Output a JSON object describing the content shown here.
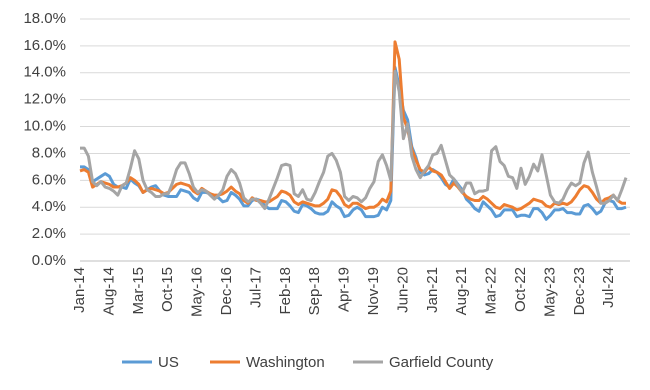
{
  "chart_data": {
    "type": "line",
    "categories": [
      "Jan-14",
      null,
      null,
      null,
      null,
      null,
      null,
      "Aug-14",
      null,
      null,
      null,
      null,
      null,
      null,
      "Mar-15",
      null,
      null,
      null,
      null,
      null,
      null,
      "Oct-15",
      null,
      null,
      null,
      null,
      null,
      null,
      "May-16",
      null,
      null,
      null,
      null,
      null,
      null,
      "Dec-16",
      null,
      null,
      null,
      null,
      null,
      null,
      "Jul-17",
      null,
      null,
      null,
      null,
      null,
      null,
      "Feb-18",
      null,
      null,
      null,
      null,
      null,
      null,
      "Sep-18",
      null,
      null,
      null,
      null,
      null,
      null,
      "Apr-19",
      null,
      null,
      null,
      null,
      null,
      null,
      "Nov-19",
      null,
      null,
      null,
      null,
      null,
      null,
      "Jun-20",
      null,
      null,
      null,
      null,
      null,
      null,
      "Jan-21",
      null,
      null,
      null,
      null,
      null,
      null,
      "Aug-21",
      null,
      null,
      null,
      null,
      null,
      null,
      "Mar-22",
      null,
      null,
      null,
      null,
      null,
      null,
      "Oct-22",
      null,
      null,
      null,
      null,
      null,
      null,
      "May-23",
      null,
      null,
      null,
      null,
      null,
      null,
      "Dec-23",
      null,
      null,
      null,
      null,
      null,
      null,
      "Jul-24",
      null,
      null,
      null,
      null
    ],
    "series": [
      {
        "name": "US",
        "color": "#5b9bd5",
        "values": [
          7.0,
          7.0,
          6.8,
          5.9,
          6.1,
          6.3,
          6.5,
          6.3,
          5.7,
          5.5,
          5.5,
          5.4,
          6.1,
          5.8,
          5.6,
          5.1,
          5.3,
          5.5,
          5.6,
          5.2,
          4.9,
          4.8,
          4.8,
          4.8,
          5.3,
          5.2,
          5.1,
          4.7,
          4.5,
          5.1,
          5.1,
          5.0,
          4.8,
          4.7,
          4.4,
          4.5,
          5.1,
          4.9,
          4.6,
          4.1,
          4.1,
          4.5,
          4.6,
          4.5,
          4.1,
          3.9,
          3.9,
          3.9,
          4.5,
          4.4,
          4.1,
          3.7,
          3.6,
          4.2,
          4.1,
          3.9,
          3.6,
          3.5,
          3.5,
          3.7,
          4.4,
          4.1,
          3.9,
          3.3,
          3.4,
          3.8,
          4.0,
          3.8,
          3.3,
          3.3,
          3.3,
          3.4,
          4.0,
          3.8,
          4.5,
          14.4,
          13.0,
          11.2,
          10.5,
          8.5,
          7.7,
          6.6,
          6.4,
          6.5,
          6.8,
          6.6,
          6.2,
          5.7,
          5.5,
          6.1,
          5.7,
          5.3,
          4.6,
          4.3,
          3.9,
          3.7,
          4.4,
          4.1,
          3.8,
          3.3,
          3.4,
          3.8,
          3.8,
          3.8,
          3.3,
          3.4,
          3.4,
          3.3,
          3.9,
          3.9,
          3.6,
          3.1,
          3.4,
          3.8,
          3.8,
          3.9,
          3.6,
          3.6,
          3.5,
          3.5,
          4.1,
          4.2,
          3.9,
          3.5,
          3.7,
          4.3,
          4.5,
          4.4,
          3.9,
          3.9,
          4.0
        ]
      },
      {
        "name": "Washington",
        "color": "#ed7d31",
        "values": [
          6.7,
          6.8,
          6.6,
          5.5,
          5.7,
          5.9,
          5.8,
          5.7,
          5.5,
          5.5,
          5.6,
          5.8,
          6.2,
          6.0,
          5.7,
          5.1,
          5.3,
          5.4,
          5.3,
          5.2,
          5.0,
          5.1,
          5.4,
          5.7,
          5.8,
          5.7,
          5.6,
          5.2,
          5.0,
          5.4,
          5.2,
          5.0,
          4.9,
          4.9,
          5.0,
          5.2,
          5.5,
          5.2,
          5.0,
          4.5,
          4.3,
          4.7,
          4.5,
          4.5,
          4.4,
          4.4,
          4.6,
          4.8,
          5.2,
          5.1,
          4.9,
          4.4,
          4.2,
          4.4,
          4.3,
          4.2,
          4.1,
          4.1,
          4.3,
          4.6,
          5.3,
          5.2,
          4.8,
          4.2,
          4.0,
          4.3,
          4.3,
          4.1,
          3.9,
          4.0,
          4.0,
          4.2,
          4.6,
          4.4,
          5.2,
          16.3,
          15.0,
          10.7,
          9.8,
          8.3,
          7.5,
          6.8,
          6.6,
          7.0,
          6.7,
          6.6,
          6.4,
          5.9,
          5.4,
          5.8,
          5.5,
          5.1,
          4.8,
          4.6,
          4.5,
          4.5,
          4.8,
          4.6,
          4.3,
          4.0,
          3.9,
          4.2,
          4.1,
          4.0,
          3.8,
          3.9,
          4.1,
          4.3,
          4.6,
          4.5,
          4.4,
          4.1,
          4.0,
          4.3,
          4.2,
          4.3,
          4.2,
          4.4,
          4.8,
          5.3,
          5.6,
          5.5,
          5.1,
          4.6,
          4.3,
          4.6,
          4.7,
          4.9,
          4.5,
          4.3,
          4.3
        ]
      },
      {
        "name": "Garfield County",
        "color": "#a5a5a5",
        "values": [
          8.4,
          8.4,
          7.8,
          5.9,
          5.6,
          5.9,
          5.5,
          5.4,
          5.2,
          4.9,
          5.6,
          5.8,
          6.9,
          8.2,
          7.6,
          6.0,
          5.3,
          5.1,
          4.8,
          4.8,
          5.0,
          5.0,
          5.8,
          6.8,
          7.3,
          7.3,
          6.5,
          5.5,
          5.1,
          5.3,
          5.2,
          4.9,
          4.6,
          4.9,
          5.3,
          6.3,
          6.8,
          6.5,
          5.8,
          4.7,
          4.4,
          4.6,
          4.6,
          4.3,
          3.9,
          4.6,
          5.4,
          6.2,
          7.1,
          7.2,
          7.1,
          5.0,
          4.8,
          5.3,
          4.6,
          4.5,
          5.1,
          5.9,
          6.6,
          7.8,
          8.0,
          7.5,
          6.6,
          4.8,
          4.5,
          4.8,
          4.7,
          4.4,
          4.7,
          5.4,
          5.9,
          7.4,
          7.9,
          7.1,
          6.0,
          14.1,
          12.6,
          9.1,
          10.2,
          7.8,
          6.8,
          6.2,
          6.7,
          7.1,
          7.9,
          8.0,
          8.6,
          7.5,
          6.4,
          6.1,
          5.6,
          5.1,
          5.8,
          5.8,
          5.0,
          5.2,
          5.2,
          5.3,
          8.2,
          8.5,
          7.4,
          7.1,
          6.3,
          6.2,
          5.4,
          6.9,
          5.7,
          6.3,
          7.2,
          6.7,
          7.9,
          6.4,
          4.9,
          4.4,
          4.3,
          4.6,
          5.3,
          5.8,
          5.6,
          5.8,
          7.3,
          8.1,
          6.6,
          5.5,
          4.3,
          4.3,
          4.5,
          4.9,
          4.5,
          5.3,
          6.2
        ]
      }
    ],
    "ylim": [
      0,
      18
    ],
    "yticks": [
      {
        "value": 0,
        "label": "0.0%"
      },
      {
        "value": 2,
        "label": "2.0%"
      },
      {
        "value": 4,
        "label": "4.0%"
      },
      {
        "value": 6,
        "label": "6.0%"
      },
      {
        "value": 8,
        "label": "8.0%"
      },
      {
        "value": 10,
        "label": "10.0%"
      },
      {
        "value": 12,
        "label": "12.0%"
      },
      {
        "value": 14,
        "label": "14.0%"
      },
      {
        "value": 16,
        "label": "16.0%"
      },
      {
        "value": 18,
        "label": "18.0%"
      }
    ],
    "grid": true
  }
}
